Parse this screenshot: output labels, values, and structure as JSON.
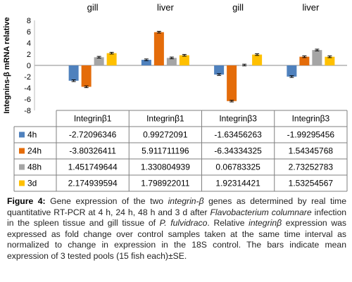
{
  "chart_data": {
    "type": "bar",
    "ylabel": "Integnins-β mRNA relative",
    "ylim": [
      -8,
      8
    ],
    "yticks": [
      8,
      6,
      4,
      2,
      0,
      -2,
      -4,
      -6,
      -8
    ],
    "groups": [
      "gill",
      "liver",
      "gill",
      "liver"
    ],
    "categories": [
      "Integrinβ1",
      "Integrinβ1",
      "Integrinβ3",
      "Integrinβ3"
    ],
    "series": [
      {
        "name": "4h",
        "color": "#4F81BD",
        "values": [
          -2.72096346,
          0.99272091,
          -1.63456263,
          -1.99295456
        ],
        "values_text": [
          "-2.72096346",
          "0.99272091",
          "-1.63456263",
          "-1.99295456"
        ]
      },
      {
        "name": "24h",
        "color": "#E46C0A",
        "values": [
          -3.80326411,
          5.911711196,
          -6.34334325,
          1.54345768
        ],
        "values_text": [
          "-3.80326411",
          "5.911711196",
          "-6.34334325",
          "1.54345768"
        ]
      },
      {
        "name": "48h",
        "color": "#A5A5A5",
        "values": [
          1.451749644,
          1.330804939,
          0.06783325,
          2.73252783
        ],
        "values_text": [
          "1.451749644",
          "1.330804939",
          "0.06783325",
          "2.73252783"
        ]
      },
      {
        "name": "3d",
        "color": "#FFC000",
        "values": [
          2.174939594,
          1.798922011,
          1.92314421,
          1.53254567
        ],
        "values_text": [
          "2.174939594",
          "1.798922011",
          "1.92314421",
          "1.53254567"
        ]
      }
    ],
    "error_bars": true,
    "legend": "table-left"
  },
  "caption": {
    "label": "Figure 4:",
    "parts": [
      {
        "t": " Gene expression of the two ",
        "i": false
      },
      {
        "t": "integrin-β",
        "i": true
      },
      {
        "t": " genes as determined by real time quantitative RT-PCR at 4 h, 24 h, 48 h and 3 d after ",
        "i": false
      },
      {
        "t": "Flavobacterium columnare",
        "i": true
      },
      {
        "t": " infection in the spleen tissue and gill tissue of ",
        "i": false
      },
      {
        "t": "P. fulvidraco",
        "i": true
      },
      {
        "t": ". Relative ",
        "i": false
      },
      {
        "t": "integrinβ",
        "i": true
      },
      {
        "t": " expression was expressed as fold change over control samples taken at the same time interval as normalized to change in expression in the 18S control. The bars indicate mean expression of 3 tested pools (15 fish each)±SE.",
        "i": false
      }
    ]
  }
}
